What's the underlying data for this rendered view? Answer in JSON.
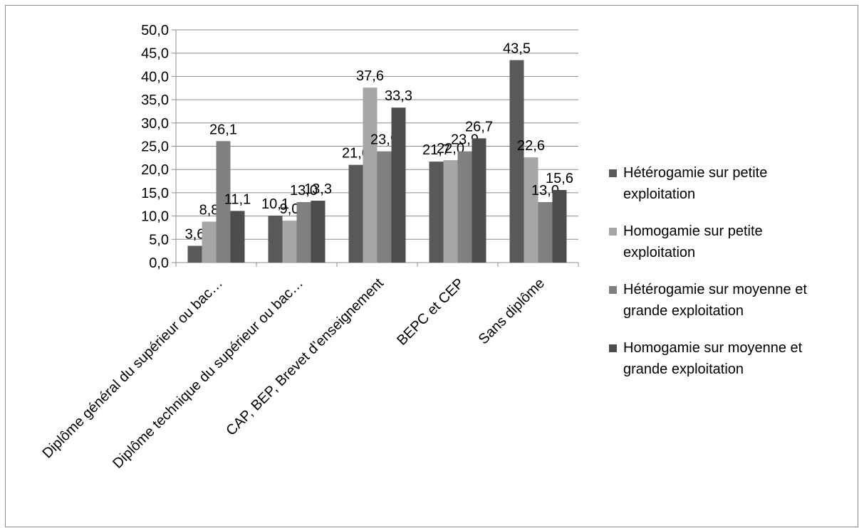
{
  "chart_data": {
    "type": "bar",
    "categories": [
      "Diplôme général du supérieur ou bac…",
      "Diplôme technique du supérieur ou bac…",
      "CAP, BEP, Brevet d’enseignement",
      "BEPC et CEP",
      "Sans diplôme"
    ],
    "series": [
      {
        "name": "Hétérogamie sur petite exploitation",
        "color": "#595959",
        "values": [
          3.6,
          10.1,
          21.0,
          21.7,
          43.5
        ],
        "labels": [
          "3,6",
          "10,1",
          "21,0",
          "21,7",
          "43,5"
        ]
      },
      {
        "name": "Homogamie sur petite exploitation",
        "color": "#a6a6a6",
        "values": [
          8.8,
          9.0,
          37.6,
          22.0,
          22.6
        ],
        "labels": [
          "8,8",
          "9,0",
          "37,6",
          "22,0",
          "22,6"
        ]
      },
      {
        "name": "Hétérogamie sur moyenne et grande exploitation",
        "color": "#808080",
        "values": [
          26.1,
          13.0,
          23.9,
          23.9,
          13.0
        ],
        "labels": [
          "26,1",
          "13,0",
          "23,9",
          "23,9",
          "13,0"
        ]
      },
      {
        "name": "Homogamie sur moyenne et grande exploitation",
        "color": "#4d4d4d",
        "values": [
          11.1,
          13.3,
          33.3,
          26.7,
          15.6
        ],
        "labels": [
          "11,1",
          "13,3",
          "33,3",
          "26,7",
          "15,6"
        ]
      }
    ],
    "ylim": [
      0,
      50
    ],
    "yticks": [
      "0,0",
      "5,0",
      "10,0",
      "15,0",
      "20,0",
      "25,0",
      "30,0",
      "35,0",
      "40,0",
      "45,0",
      "50,0"
    ],
    "grid": true,
    "legend_position": "right",
    "legend_lines": [
      [
        "Hétérogamie sur petite",
        "exploitation"
      ],
      [
        "Homogamie sur petite",
        "exploitation"
      ],
      [
        "Hétérogamie sur moyenne et",
        "grande exploitation"
      ],
      [
        "Homogamie sur moyenne et",
        "grande exploitation"
      ]
    ]
  }
}
